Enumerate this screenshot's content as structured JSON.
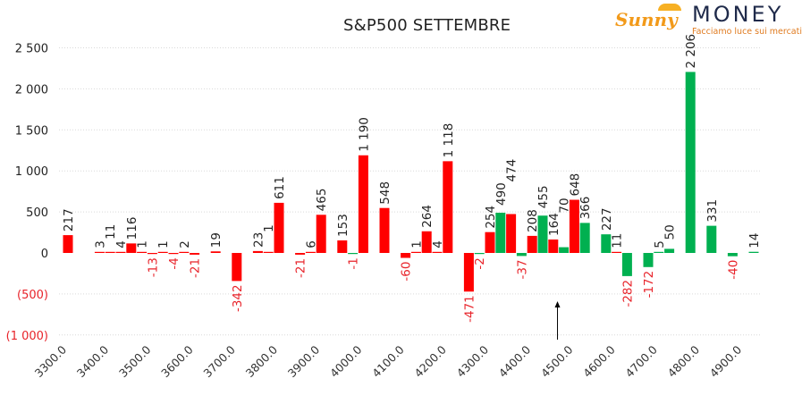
{
  "logo": {
    "brand_a": "Sunny",
    "brand_b": "MONEY",
    "tagline": "Facciamo luce sui mercati"
  },
  "colors": {
    "red": "#ff0000",
    "green": "#00b050",
    "neg_label": "#e8232a",
    "pos_label": "#222222",
    "grid": "#d9d9d9"
  },
  "chart_data": {
    "type": "bar",
    "title": "S&P500 SETTEMBRE",
    "xlabel": "",
    "ylabel": "",
    "ylim": [
      -1000,
      2500
    ],
    "yticks": [
      2500,
      2000,
      1500,
      1000,
      500,
      0,
      -500,
      -1000
    ],
    "ytick_labels": [
      "2 500",
      "2 000",
      "1 500",
      "1 000",
      "500",
      "0",
      "(500)",
      "(1 000)"
    ],
    "xtick_labels": [
      "3300.0",
      "3400.0",
      "3500.0",
      "3600.0",
      "3700.0",
      "3800.0",
      "3900.0",
      "4000.0",
      "4100.0",
      "4200.0",
      "4300.0",
      "4400.0",
      "4500.0",
      "4600.0",
      "4700.0",
      "4800.0",
      "4900.0"
    ],
    "grid": true,
    "annotation": {
      "type": "arrow-up",
      "strike": 4460
    },
    "bars": [
      {
        "strike": 3300,
        "value": 217,
        "color": "red"
      },
      {
        "strike": 3375,
        "value": 3,
        "color": "red"
      },
      {
        "strike": 3400,
        "value": 11,
        "color": "red"
      },
      {
        "strike": 3425,
        "value": 4,
        "color": "red"
      },
      {
        "strike": 3450,
        "value": 116,
        "color": "red"
      },
      {
        "strike": 3475,
        "value": 1,
        "color": "red"
      },
      {
        "strike": 3500,
        "value": -13,
        "color": "red"
      },
      {
        "strike": 3525,
        "value": 1,
        "color": "red"
      },
      {
        "strike": 3550,
        "value": -4,
        "color": "red"
      },
      {
        "strike": 3575,
        "value": 2,
        "color": "red"
      },
      {
        "strike": 3600,
        "value": -21,
        "color": "red"
      },
      {
        "strike": 3650,
        "value": 19,
        "color": "red"
      },
      {
        "strike": 3700,
        "value": -342,
        "color": "red"
      },
      {
        "strike": 3750,
        "value": 23,
        "color": "red"
      },
      {
        "strike": 3775,
        "value": 1,
        "color": "red"
      },
      {
        "strike": 3800,
        "value": 611,
        "color": "red"
      },
      {
        "strike": 3850,
        "value": -21,
        "color": "red"
      },
      {
        "strike": 3875,
        "value": 6,
        "color": "red"
      },
      {
        "strike": 3900,
        "value": 465,
        "color": "red"
      },
      {
        "strike": 3950,
        "value": 153,
        "color": "red"
      },
      {
        "strike": 3975,
        "value": -1,
        "color": "green"
      },
      {
        "strike": 4000,
        "value": 1190,
        "color": "red"
      },
      {
        "strike": 4050,
        "value": 548,
        "color": "red"
      },
      {
        "strike": 4100,
        "value": -60,
        "color": "red"
      },
      {
        "strike": 4125,
        "value": 1,
        "color": "red"
      },
      {
        "strike": 4150,
        "value": 264,
        "color": "red"
      },
      {
        "strike": 4175,
        "value": 4,
        "color": "red"
      },
      {
        "strike": 4200,
        "value": 1118,
        "color": "red"
      },
      {
        "strike": 4250,
        "value": -471,
        "color": "red"
      },
      {
        "strike": 4275,
        "value": -2,
        "color": "green"
      },
      {
        "strike": 4300,
        "value": 254,
        "color": "red"
      },
      {
        "strike": 4325,
        "value": 490,
        "color": "green"
      },
      {
        "strike": 4350,
        "value": 474,
        "color": "red"
      },
      {
        "strike": 4375,
        "value": -37,
        "color": "green"
      },
      {
        "strike": 4400,
        "value": 208,
        "color": "red"
      },
      {
        "strike": 4425,
        "value": 455,
        "color": "green"
      },
      {
        "strike": 4450,
        "value": 164,
        "color": "red"
      },
      {
        "strike": 4475,
        "value": 70,
        "color": "green"
      },
      {
        "strike": 4500,
        "value": 648,
        "color": "red"
      },
      {
        "strike": 4525,
        "value": 366,
        "color": "green"
      },
      {
        "strike": 4575,
        "value": 227,
        "color": "green"
      },
      {
        "strike": 4600,
        "value": 11,
        "color": "red"
      },
      {
        "strike": 4625,
        "value": -282,
        "color": "green"
      },
      {
        "strike": 4675,
        "value": -172,
        "color": "green"
      },
      {
        "strike": 4700,
        "value": 5,
        "color": "green"
      },
      {
        "strike": 4725,
        "value": 50,
        "color": "green"
      },
      {
        "strike": 4775,
        "value": 2206,
        "color": "green"
      },
      {
        "strike": 4825,
        "value": 331,
        "color": "green"
      },
      {
        "strike": 4875,
        "value": -40,
        "color": "green"
      },
      {
        "strike": 4925,
        "value": 14,
        "color": "green"
      }
    ]
  }
}
